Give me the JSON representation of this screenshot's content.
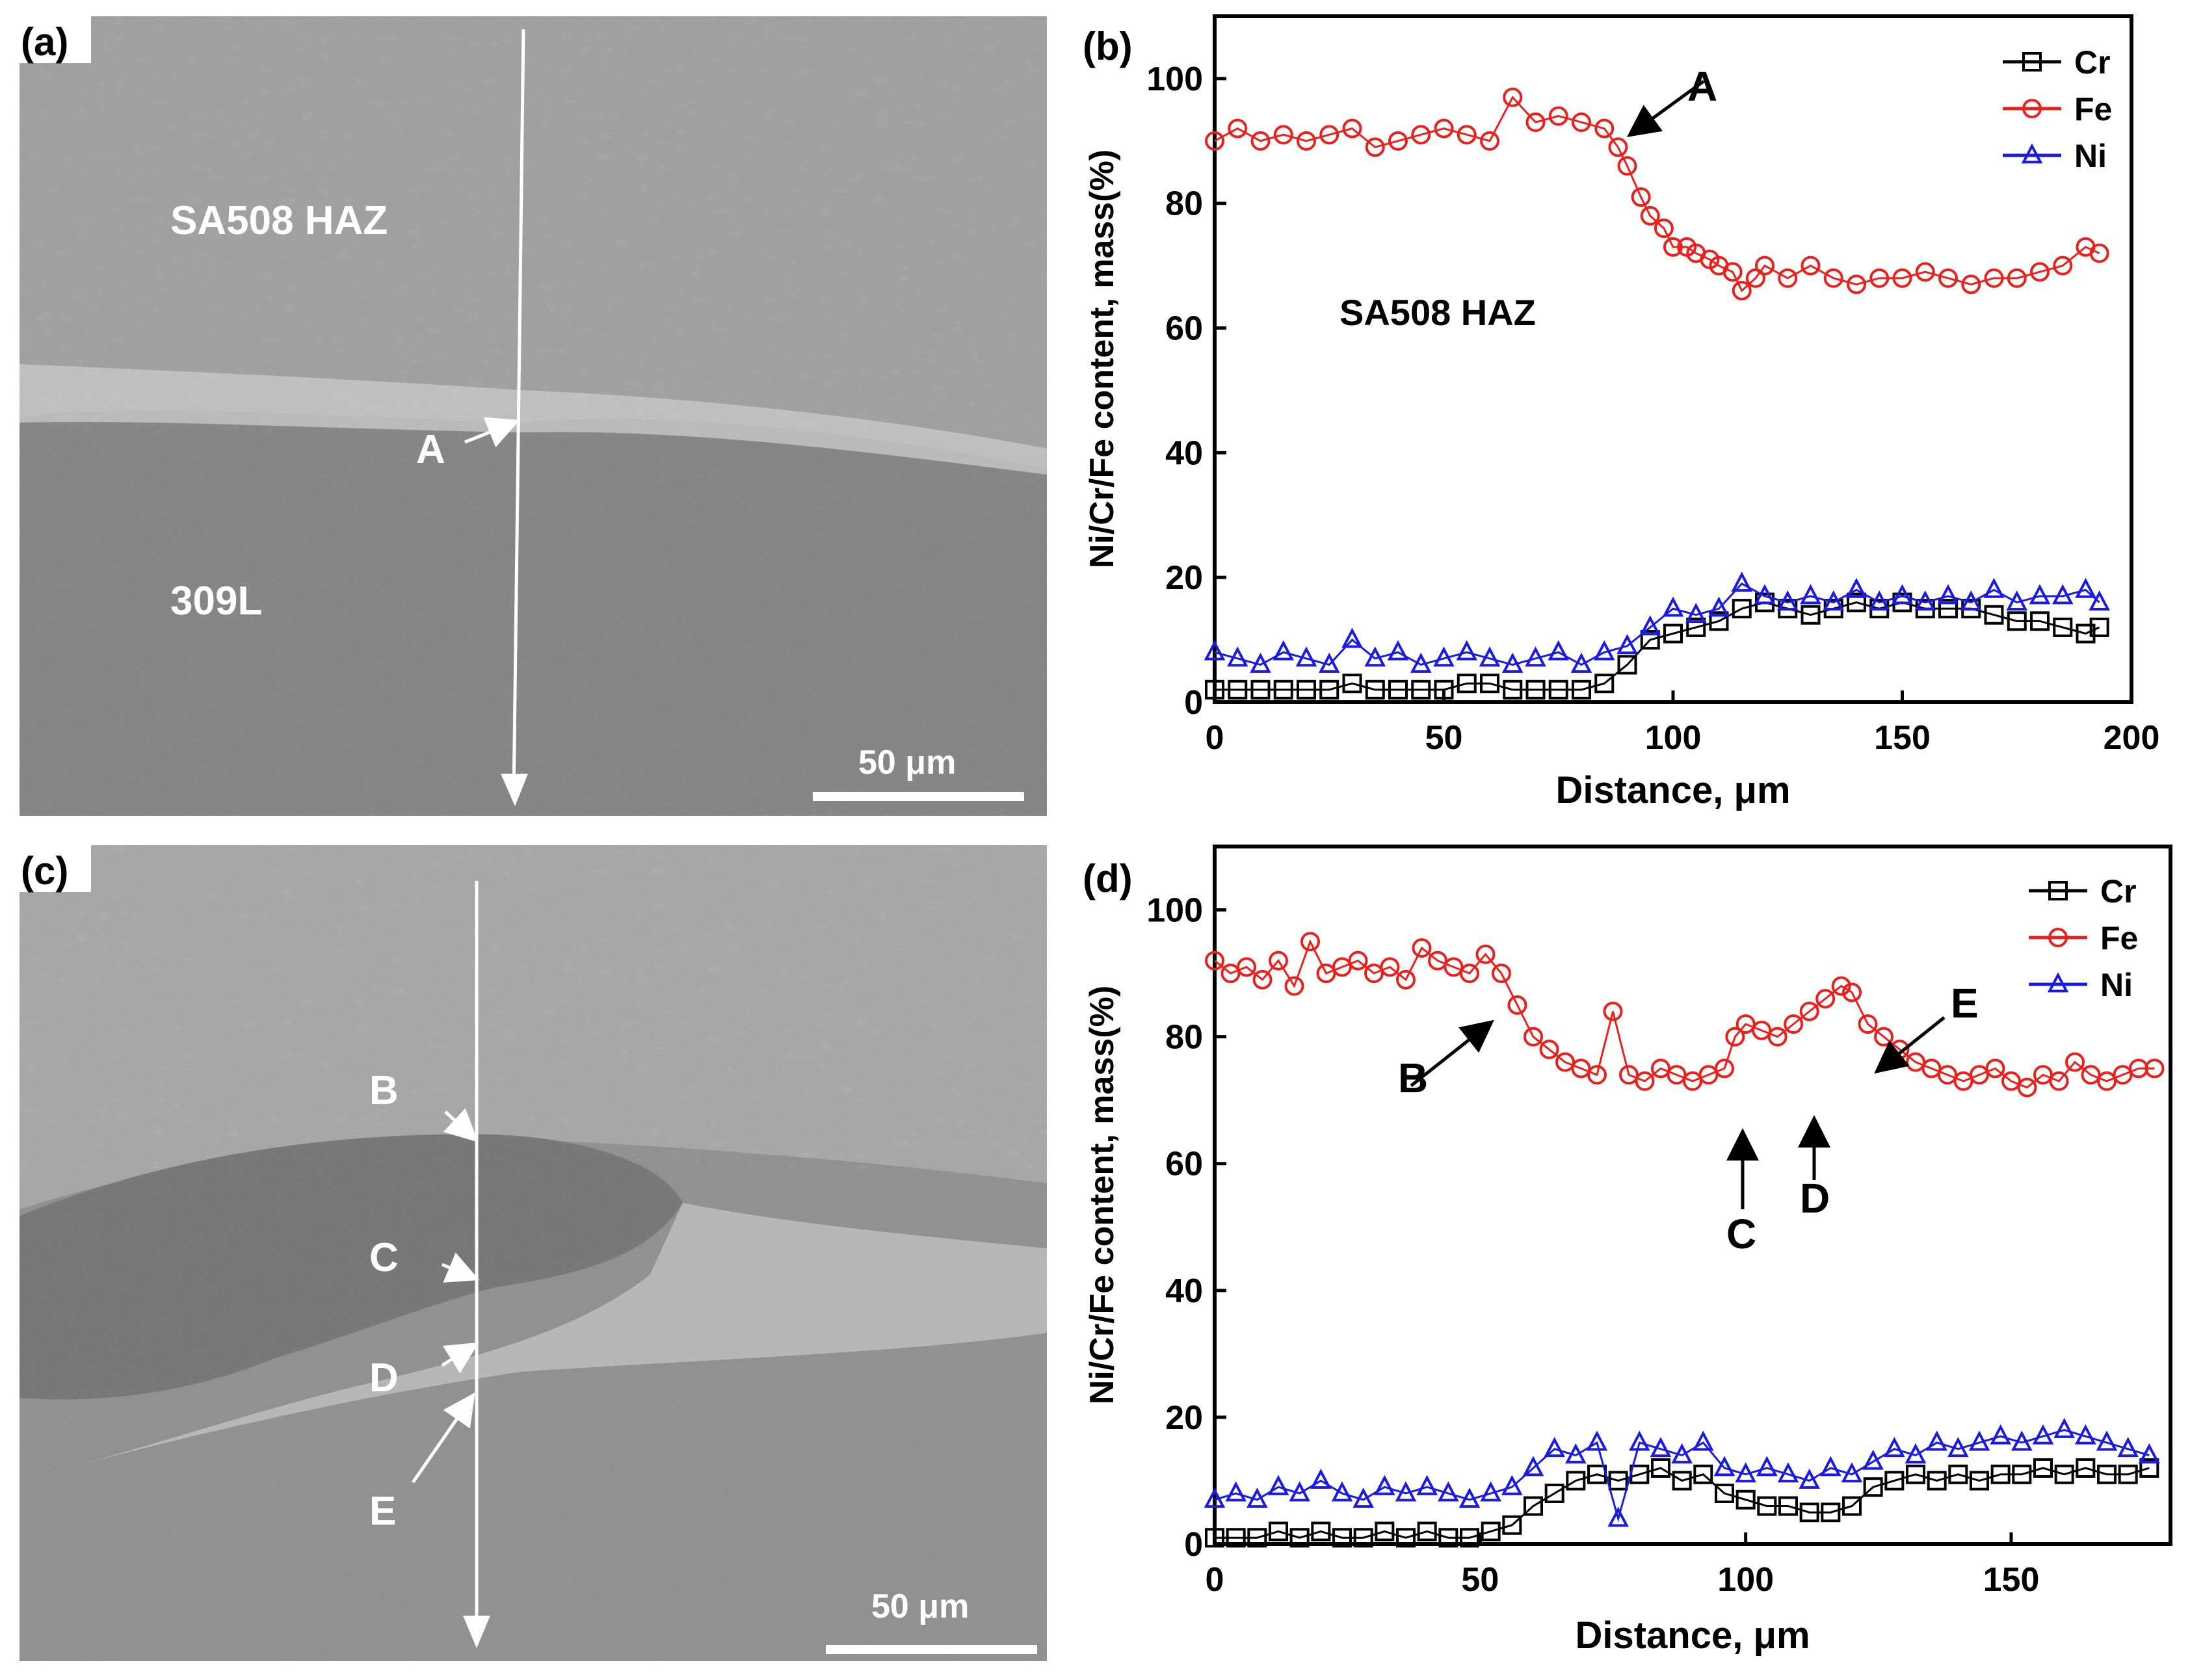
{
  "panels": {
    "a": {
      "label": "(a)",
      "region_haz": "SA508 HAZ",
      "region_weld": "309L",
      "point_labels": [
        "A"
      ],
      "scale_bar": "50 μm"
    },
    "c": {
      "label": "(c)",
      "point_labels": [
        "B",
        "C",
        "D",
        "E"
      ],
      "scale_bar": "50 μm"
    }
  },
  "chart_data": [
    {
      "panel": "b",
      "label": "(b)",
      "type": "scatter",
      "xlabel": "Distance, μm",
      "ylabel": "Ni/Cr/Fe content, mass(%)",
      "xlim": [
        0,
        200
      ],
      "ylim": [
        0,
        110
      ],
      "xticks": [
        0,
        50,
        100,
        150,
        200
      ],
      "yticks": [
        0,
        20,
        40,
        60,
        80,
        100
      ],
      "legend": [
        "Cr",
        "Fe",
        "Ni"
      ],
      "legend_position": "top-right",
      "annotations": [
        {
          "text": "SA508 HAZ",
          "x": 32,
          "y": 63
        },
        {
          "text": "A",
          "x": 88,
          "y": 90
        }
      ],
      "series": [
        {
          "name": "Cr",
          "color": "#000000",
          "marker": "square",
          "x": [
            0,
            5,
            10,
            15,
            20,
            25,
            30,
            35,
            40,
            45,
            50,
            55,
            60,
            65,
            70,
            75,
            80,
            85,
            90,
            95,
            100,
            105,
            110,
            115,
            120,
            125,
            130,
            135,
            140,
            145,
            150,
            155,
            160,
            165,
            170,
            175,
            180,
            185,
            190,
            193
          ],
          "y": [
            2,
            2,
            2,
            2,
            2,
            2,
            3,
            2,
            2,
            2,
            2,
            3,
            3,
            2,
            2,
            2,
            2,
            3,
            6,
            10,
            11,
            12,
            13,
            15,
            16,
            15,
            14,
            15,
            16,
            15,
            16,
            15,
            15,
            15,
            14,
            13,
            13,
            12,
            11,
            12
          ]
        },
        {
          "name": "Fe",
          "color": "#e8211d",
          "marker": "circle",
          "x": [
            0,
            5,
            10,
            15,
            20,
            25,
            30,
            35,
            40,
            45,
            50,
            55,
            60,
            65,
            70,
            75,
            80,
            85,
            88,
            90,
            93,
            95,
            98,
            100,
            103,
            105,
            108,
            110,
            113,
            115,
            118,
            120,
            125,
            130,
            135,
            140,
            145,
            150,
            155,
            160,
            165,
            170,
            175,
            180,
            185,
            190,
            193
          ],
          "y": [
            90,
            92,
            90,
            91,
            90,
            91,
            92,
            89,
            90,
            91,
            92,
            91,
            90,
            97,
            93,
            94,
            93,
            92,
            89,
            86,
            81,
            78,
            76,
            73,
            73,
            72,
            71,
            70,
            69,
            66,
            68,
            70,
            68,
            70,
            68,
            67,
            68,
            68,
            69,
            68,
            67,
            68,
            68,
            69,
            70,
            73,
            72
          ]
        },
        {
          "name": "Ni",
          "color": "#1a1ae0",
          "marker": "triangle",
          "x": [
            0,
            5,
            10,
            15,
            20,
            25,
            30,
            35,
            40,
            45,
            50,
            55,
            60,
            65,
            70,
            75,
            80,
            85,
            90,
            95,
            100,
            105,
            110,
            115,
            120,
            125,
            130,
            135,
            140,
            145,
            150,
            155,
            160,
            165,
            170,
            175,
            180,
            185,
            190,
            193
          ],
          "y": [
            8,
            7,
            6,
            8,
            7,
            6,
            10,
            7,
            8,
            6,
            7,
            8,
            7,
            6,
            7,
            8,
            6,
            8,
            9,
            12,
            15,
            14,
            15,
            19,
            17,
            16,
            17,
            16,
            18,
            16,
            17,
            16,
            17,
            16,
            18,
            16,
            17,
            17,
            18,
            16
          ]
        }
      ]
    },
    {
      "panel": "d",
      "label": "(d)",
      "type": "scatter",
      "xlabel": "Distance, μm",
      "ylabel": "Ni/Cr/Fe content, mass(%)",
      "xlim": [
        0,
        180
      ],
      "ylim": [
        0,
        110
      ],
      "xticks": [
        0,
        50,
        100,
        150
      ],
      "yticks": [
        0,
        20,
        40,
        60,
        80,
        100
      ],
      "legend": [
        "Cr",
        "Fe",
        "Ni"
      ],
      "legend_position": "top-right",
      "annotations": [
        {
          "text": "B",
          "x": 52,
          "y": 90
        },
        {
          "text": "C",
          "x": 98,
          "y": 77
        },
        {
          "text": "D",
          "x": 112,
          "y": 81
        },
        {
          "text": "E",
          "x": 125,
          "y": 82
        }
      ],
      "series": [
        {
          "name": "Cr",
          "color": "#000000",
          "marker": "square",
          "x": [
            0,
            4,
            8,
            12,
            16,
            20,
            24,
            28,
            32,
            36,
            40,
            44,
            48,
            52,
            56,
            60,
            64,
            68,
            72,
            76,
            80,
            84,
            88,
            92,
            96,
            100,
            104,
            108,
            112,
            116,
            120,
            124,
            128,
            132,
            136,
            140,
            144,
            148,
            152,
            156,
            160,
            164,
            168,
            172,
            176
          ],
          "y": [
            1,
            1,
            1,
            2,
            1,
            2,
            1,
            1,
            2,
            1,
            2,
            1,
            1,
            2,
            3,
            6,
            8,
            10,
            11,
            10,
            11,
            12,
            10,
            11,
            8,
            7,
            6,
            6,
            5,
            5,
            6,
            9,
            10,
            11,
            10,
            11,
            10,
            11,
            11,
            12,
            11,
            12,
            11,
            11,
            12
          ]
        },
        {
          "name": "Fe",
          "color": "#e8211d",
          "marker": "circle",
          "x": [
            0,
            3,
            6,
            9,
            12,
            15,
            18,
            21,
            24,
            27,
            30,
            33,
            36,
            39,
            42,
            45,
            48,
            51,
            54,
            57,
            60,
            63,
            66,
            69,
            72,
            75,
            78,
            81,
            84,
            87,
            90,
            93,
            96,
            98,
            100,
            103,
            106,
            109,
            112,
            115,
            118,
            120,
            123,
            126,
            129,
            132,
            135,
            138,
            141,
            144,
            147,
            150,
            153,
            156,
            159,
            162,
            165,
            168,
            171,
            174,
            177
          ],
          "y": [
            92,
            90,
            91,
            89,
            92,
            88,
            95,
            90,
            91,
            92,
            90,
            91,
            89,
            94,
            92,
            91,
            90,
            93,
            90,
            85,
            80,
            78,
            76,
            75,
            74,
            84,
            74,
            73,
            75,
            74,
            73,
            74,
            75,
            80,
            82,
            81,
            80,
            82,
            84,
            86,
            88,
            87,
            82,
            80,
            78,
            76,
            75,
            74,
            73,
            74,
            75,
            73,
            72,
            74,
            73,
            76,
            74,
            73,
            74,
            75,
            75
          ]
        },
        {
          "name": "Ni",
          "color": "#1a1ae0",
          "marker": "triangle",
          "x": [
            0,
            4,
            8,
            12,
            16,
            20,
            24,
            28,
            32,
            36,
            40,
            44,
            48,
            52,
            56,
            60,
            64,
            68,
            72,
            76,
            80,
            84,
            88,
            92,
            96,
            100,
            104,
            108,
            112,
            116,
            120,
            124,
            128,
            132,
            136,
            140,
            144,
            148,
            152,
            156,
            160,
            164,
            168,
            172,
            176
          ],
          "y": [
            7,
            8,
            7,
            9,
            8,
            10,
            8,
            7,
            9,
            8,
            9,
            8,
            7,
            8,
            9,
            12,
            15,
            14,
            16,
            4,
            16,
            15,
            14,
            16,
            12,
            11,
            12,
            11,
            10,
            12,
            11,
            13,
            15,
            14,
            16,
            15,
            16,
            17,
            16,
            17,
            18,
            17,
            16,
            15,
            14
          ]
        }
      ]
    }
  ]
}
